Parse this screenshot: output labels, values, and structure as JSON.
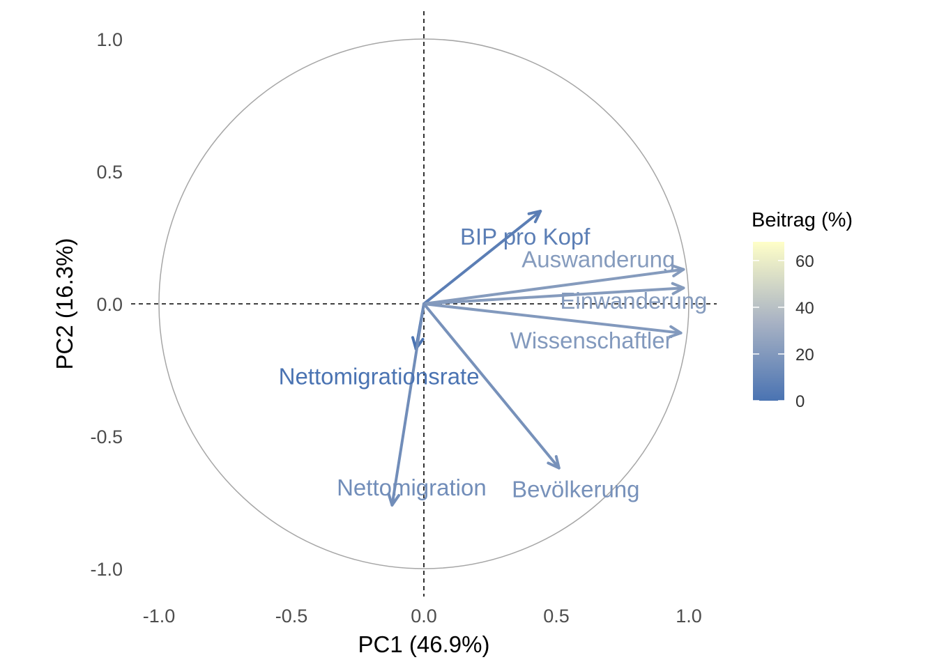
{
  "chart_data": {
    "type": "pca-correlation-circle",
    "xlabel": "PC1 (46.9%)",
    "ylabel": "PC2 (16.3%)",
    "xlim": [
      -1.0,
      1.0
    ],
    "ylim": [
      -1.0,
      1.0
    ],
    "x_ticks": [
      "-1.0",
      "-0.5",
      "0.0",
      "0.5",
      "1.0"
    ],
    "y_ticks": [
      "1.0",
      "0.5",
      "0.0",
      "-0.5",
      "-1.0"
    ],
    "grid": false,
    "unit_circle": true,
    "reference_lines": "dashed lines at x = 0 and y = 0",
    "variables": [
      {
        "name": "BIP pro Kopf",
        "x": 0.44,
        "y": 0.35,
        "contrib": 6
      },
      {
        "name": "Auswanderung",
        "x": 0.98,
        "y": 0.13,
        "contrib": 21
      },
      {
        "name": "Einwanderung",
        "x": 0.98,
        "y": 0.06,
        "contrib": 21
      },
      {
        "name": "Wissenschaftler",
        "x": 0.97,
        "y": -0.11,
        "contrib": 20
      },
      {
        "name": "Nettomigrationsrate",
        "x": -0.03,
        "y": -0.17,
        "contrib": 0
      },
      {
        "name": "Nettomigration",
        "x": -0.12,
        "y": -0.76,
        "contrib": 14
      },
      {
        "name": "Bevölkerung",
        "x": 0.51,
        "y": -0.62,
        "contrib": 16
      }
    ],
    "legend": {
      "title": "Beitrag (%)",
      "placement": "right",
      "ticks": [
        "60",
        "40",
        "20",
        "0"
      ],
      "tick_values": [
        60,
        40,
        20,
        0
      ],
      "range": [
        0,
        68
      ],
      "colors": {
        "low": "#4A73B2",
        "mid": "#A9B3C4",
        "high": "#FFFFC8"
      }
    }
  }
}
